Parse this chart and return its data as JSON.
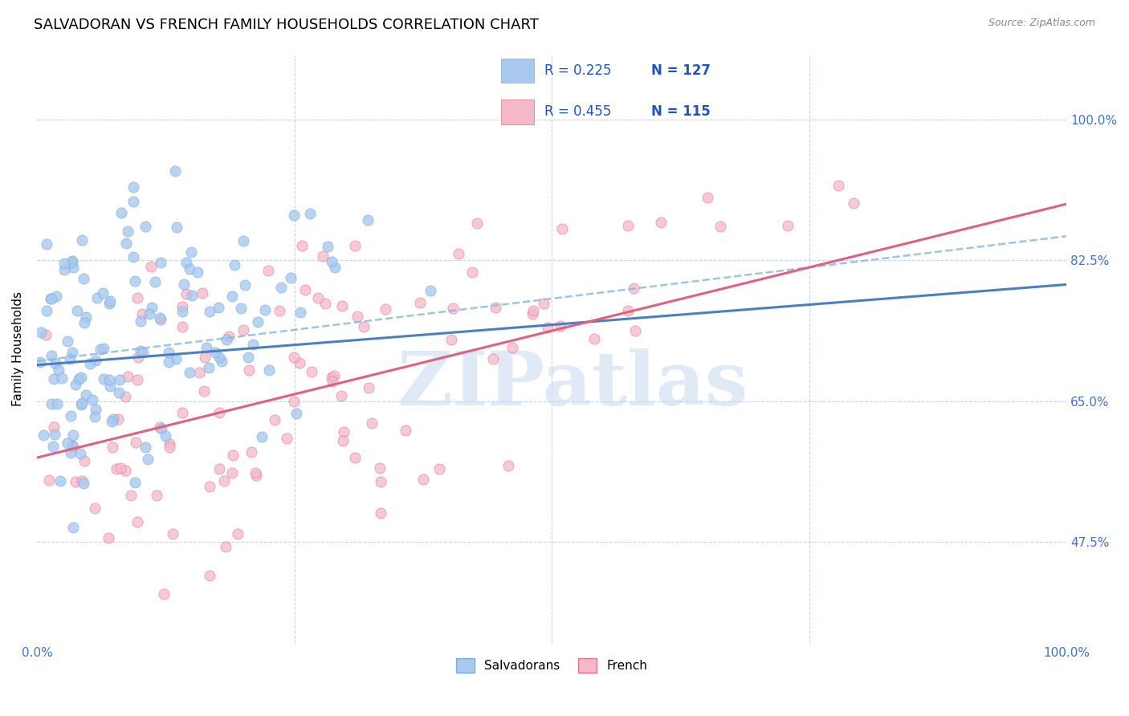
{
  "title": "SALVADORAN VS FRENCH FAMILY HOUSEHOLDS CORRELATION CHART",
  "source": "Source: ZipAtlas.com",
  "ylabel": "Family Households",
  "xlim": [
    0.0,
    1.0
  ],
  "ylim": [
    0.35,
    1.08
  ],
  "yticks": [
    0.475,
    0.65,
    0.825,
    1.0
  ],
  "ytick_labels": [
    "47.5%",
    "65.0%",
    "82.5%",
    "100.0%"
  ],
  "xtick_labels": [
    "0.0%",
    "100.0%"
  ],
  "xticks": [
    0.0,
    1.0
  ],
  "series": [
    {
      "name": "Salvadorans",
      "color": "#a8c8f0",
      "edge_color": "#7aaad8",
      "R": 0.225,
      "N": 127,
      "trend_color": "#4a7fc0",
      "trend_style": "-"
    },
    {
      "name": "French",
      "color": "#f5b8c8",
      "edge_color": "#e07090",
      "R": 0.455,
      "N": 115,
      "trend_color": "#e06080",
      "trend_style": "-"
    }
  ],
  "legend_color": "#2255bb",
  "watermark": "ZIPatlas",
  "watermark_color": "#c8d8f0",
  "background_color": "#ffffff",
  "grid_color": "#c8d4e8",
  "title_fontsize": 13,
  "axis_label_fontsize": 11,
  "tick_label_color": "#4472c4",
  "tick_label_fontsize": 11,
  "salv_trend": [
    0.695,
    0.795
  ],
  "french_trend": [
    0.58,
    0.895
  ],
  "dashed_trend": [
    0.7,
    0.855
  ]
}
